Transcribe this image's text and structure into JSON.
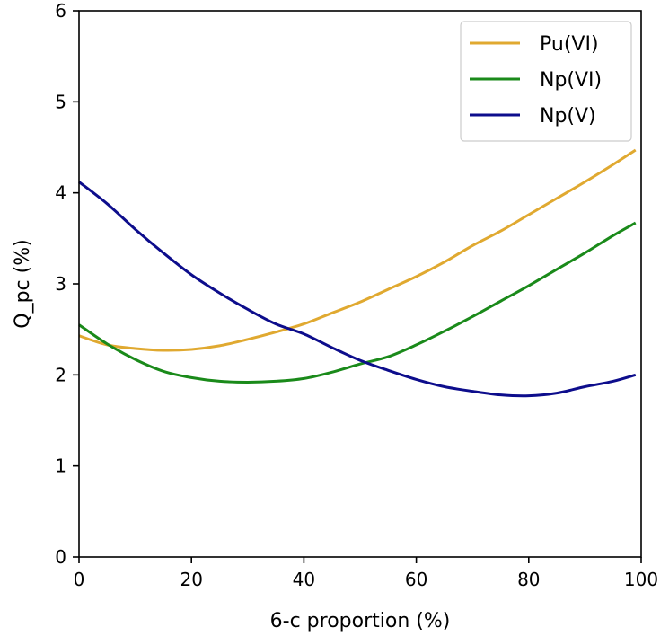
{
  "chart_data": {
    "type": "line",
    "title": "",
    "xlabel": "6-c proportion (%)",
    "ylabel": "Q_pc (%)",
    "xlim": [
      0,
      100
    ],
    "ylim": [
      0,
      6
    ],
    "xticks": [
      0,
      20,
      40,
      60,
      80,
      100
    ],
    "yticks": [
      0,
      1,
      2,
      3,
      4,
      5,
      6
    ],
    "grid": false,
    "legend": "top-right",
    "x": [
      0,
      5,
      10,
      15,
      20,
      25,
      30,
      35,
      40,
      45,
      50,
      55,
      60,
      65,
      70,
      75,
      80,
      85,
      90,
      95,
      99
    ],
    "series": [
      {
        "name": "Pu(VI)",
        "color": "#e0a930",
        "values": [
          2.43,
          2.33,
          2.29,
          2.27,
          2.28,
          2.32,
          2.39,
          2.47,
          2.56,
          2.68,
          2.8,
          2.94,
          3.08,
          3.24,
          3.42,
          3.58,
          3.76,
          3.94,
          4.12,
          4.31,
          4.47
        ]
      },
      {
        "name": "Np(VI)",
        "color": "#1a8a1a",
        "values": [
          2.55,
          2.34,
          2.17,
          2.04,
          1.97,
          1.93,
          1.92,
          1.93,
          1.96,
          2.03,
          2.12,
          2.2,
          2.33,
          2.48,
          2.64,
          2.81,
          2.98,
          3.16,
          3.34,
          3.53,
          3.67
        ]
      },
      {
        "name": "Np(V)",
        "color": "#0d0d8c",
        "values": [
          4.12,
          3.88,
          3.6,
          3.34,
          3.1,
          2.9,
          2.72,
          2.56,
          2.45,
          2.3,
          2.16,
          2.05,
          1.95,
          1.87,
          1.82,
          1.78,
          1.77,
          1.8,
          1.87,
          1.93,
          2.0
        ]
      }
    ]
  }
}
